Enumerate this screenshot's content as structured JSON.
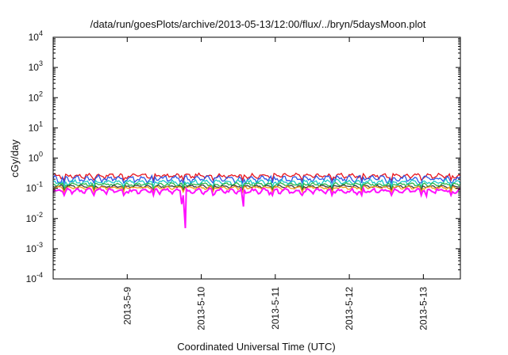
{
  "chart_data": {
    "type": "line",
    "title": "/data/run/goesPlots/archive/2013-05-13/12:00/flux/../bryn/5daysMoon.plot",
    "xlabel": "Coordinated Universal Time (UTC)",
    "ylabel": "cGy/day",
    "y_scale": "log",
    "ylim": [
      0.0001,
      10000
    ],
    "xlim": [
      "2013-05-08T00:00",
      "2013-05-13T12:00"
    ],
    "y_ticks": [
      {
        "base": "10",
        "exp": "-4",
        "value": 0.0001
      },
      {
        "base": "10",
        "exp": "-3",
        "value": 0.001
      },
      {
        "base": "10",
        "exp": "-2",
        "value": 0.01
      },
      {
        "base": "10",
        "exp": "-1",
        "value": 0.1
      },
      {
        "base": "10",
        "exp": "0",
        "value": 1
      },
      {
        "base": "10",
        "exp": "1",
        "value": 10
      },
      {
        "base": "10",
        "exp": "2",
        "value": 100
      },
      {
        "base": "10",
        "exp": "3",
        "value": 1000
      },
      {
        "base": "10",
        "exp": "4",
        "value": 10000
      }
    ],
    "x_ticks": [
      {
        "label": "2013-5-9",
        "value": "2013-05-09T00:00"
      },
      {
        "label": "2013-5-10",
        "value": "2013-05-10T00:00"
      },
      {
        "label": "2013-5-11",
        "value": "2013-05-11T00:00"
      },
      {
        "label": "2013-5-12",
        "value": "2013-05-12T00:00"
      },
      {
        "label": "2013-5-13",
        "value": "2013-05-13T00:00"
      }
    ],
    "grid": false,
    "legend": "none",
    "series": [
      {
        "color": "#e8141c",
        "base": 0.26,
        "amp": 0.06,
        "dips": []
      },
      {
        "color": "#2b55e6",
        "base": 0.21,
        "amp": 0.07,
        "dips": []
      },
      {
        "color": "#19c8c8",
        "base": 0.16,
        "amp": 0.04,
        "dips": []
      },
      {
        "color": "#2db84a",
        "base": 0.135,
        "amp": 0.02,
        "dips": []
      },
      {
        "color": "#3a3a3a",
        "base": 0.115,
        "amp": 0.015,
        "dips": []
      },
      {
        "color": "#f29a1c",
        "base": 0.105,
        "amp": 0.015,
        "dips": []
      },
      {
        "color": "#ff10ff",
        "base": 0.082,
        "amp": 0.02,
        "dips": [
          {
            "x": "2013-05-09T18:50",
            "y": 0.0048
          },
          {
            "x": "2013-05-09T17:40",
            "y": 0.03
          },
          {
            "x": "2013-05-10T13:40",
            "y": 0.025
          },
          {
            "x": "2013-05-13T01:00",
            "y": 0.055
          }
        ]
      }
    ]
  }
}
